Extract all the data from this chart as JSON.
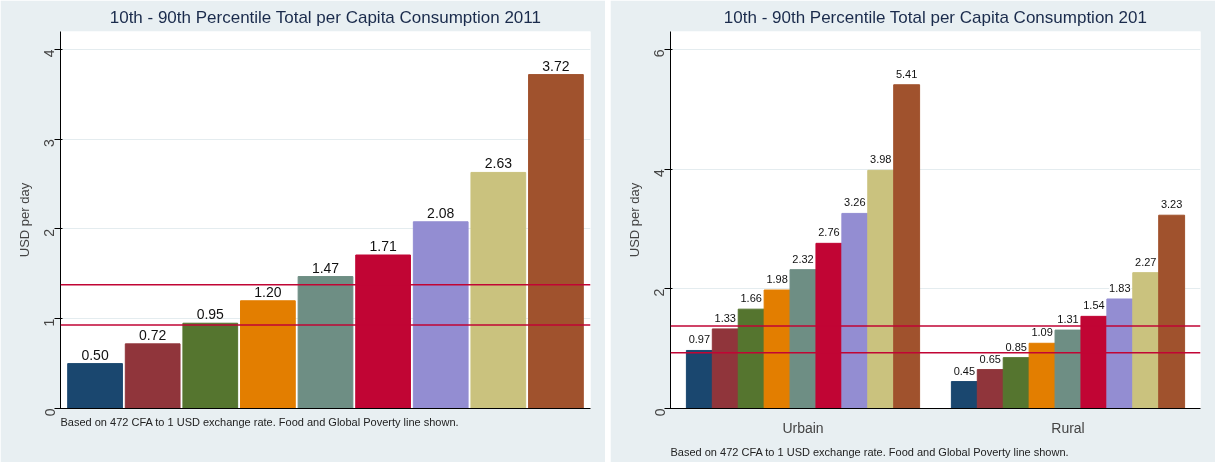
{
  "chart_data": [
    {
      "type": "bar",
      "title": "10th - 90th Percentile Total per Capita Consumption 2011",
      "ylabel": "USD per day",
      "categories": [
        null,
        null,
        null,
        null,
        null,
        null,
        null,
        null,
        null
      ],
      "values": [
        0.5,
        0.72,
        0.95,
        1.2,
        1.47,
        1.71,
        2.08,
        2.63,
        3.72
      ],
      "value_labels": [
        "0.50",
        "0.72",
        "0.95",
        "1.20",
        "1.47",
        "1.71",
        "2.08",
        "2.63",
        "3.72"
      ],
      "colors": [
        "#1a476f",
        "#90353b",
        "#55752f",
        "#e37e00",
        "#6e8e84",
        "#c10534",
        "#938dd2",
        "#cac27e",
        "#a0522d"
      ],
      "ylim": [
        0,
        4.2
      ],
      "yticks": [
        0,
        1,
        2,
        3,
        4
      ],
      "grid": "y",
      "ref_lines": [
        {
          "axis": "y",
          "value": 0.93,
          "color": "#c10534"
        },
        {
          "axis": "y",
          "value": 1.38,
          "color": "#c10534"
        }
      ],
      "annotations": [
        "Based on 472 CFA to 1 USD exchange rate. Food and Global Poverty line shown."
      ]
    },
    {
      "type": "bar",
      "title": "10th - 90th Percentile Total per Capita Consumption 201",
      "ylabel": "USD per day",
      "categories": [
        "Urbain",
        "Rural"
      ],
      "series": [
        {
          "color": "#1a476f",
          "values": [
            0.97,
            0.45
          ],
          "value_labels": [
            "0.97",
            "0.45"
          ]
        },
        {
          "color": "#90353b",
          "values": [
            1.33,
            0.65
          ],
          "value_labels": [
            "1.33",
            "0.65"
          ]
        },
        {
          "color": "#55752f",
          "values": [
            1.66,
            0.85
          ],
          "value_labels": [
            "1.66",
            "0.85"
          ]
        },
        {
          "color": "#e37e00",
          "values": [
            1.98,
            1.09
          ],
          "value_labels": [
            "1.98",
            "1.09"
          ]
        },
        {
          "color": "#6e8e84",
          "values": [
            2.32,
            1.31
          ],
          "value_labels": [
            "2.32",
            "1.31"
          ]
        },
        {
          "color": "#c10534",
          "values": [
            2.76,
            1.54
          ],
          "value_labels": [
            "2.76",
            "1.54"
          ]
        },
        {
          "color": "#938dd2",
          "values": [
            3.26,
            1.83
          ],
          "value_labels": [
            "3.26",
            "1.83"
          ]
        },
        {
          "color": "#cac27e",
          "values": [
            3.98,
            2.27
          ],
          "value_labels": [
            "3.98",
            "2.27"
          ]
        },
        {
          "color": "#a0522d",
          "values": [
            5.41,
            3.23
          ],
          "value_labels": [
            "5.41",
            "3.23"
          ]
        }
      ],
      "ylim": [
        0,
        6.3
      ],
      "yticks": [
        0,
        2,
        4,
        6
      ],
      "grid": "y",
      "ref_lines": [
        {
          "axis": "y",
          "value": 0.93,
          "color": "#c10534"
        },
        {
          "axis": "y",
          "value": 1.38,
          "color": "#c10534"
        }
      ],
      "annotations": [
        "Based on 472 CFA to 1 USD exchange rate. Food and Global Poverty line shown."
      ]
    }
  ]
}
